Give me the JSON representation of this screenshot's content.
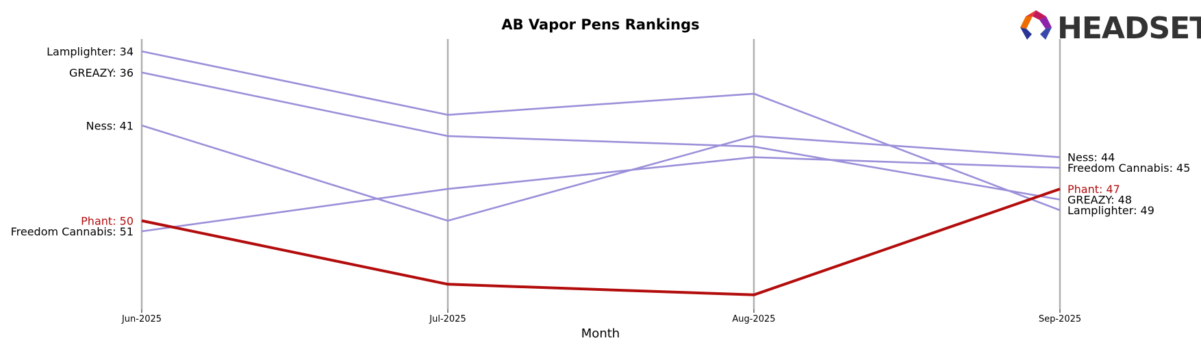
{
  "chart_data": {
    "type": "line",
    "title": "AB Vapor Pens Rankings",
    "xlabel": "Month",
    "ylabel": "",
    "categories": [
      "Jun-2025",
      "Jul-2025",
      "Aug-2025",
      "Sep-2025"
    ],
    "y_inverted": true,
    "ylim": [
      57,
      33
    ],
    "grid": "vertical-at-months",
    "legend": "none",
    "series": [
      {
        "name": "Lamplighter",
        "values": [
          34,
          40,
          38,
          49
        ],
        "color": "#9b8fd9",
        "highlight": false
      },
      {
        "name": "GREAZY",
        "values": [
          36,
          42,
          43,
          48
        ],
        "color": "#9b8fd9",
        "highlight": false
      },
      {
        "name": "Ness",
        "values": [
          41,
          50,
          42,
          44
        ],
        "color": "#9b8fd9",
        "highlight": false
      },
      {
        "name": "Freedom Cannabis",
        "values": [
          51,
          47,
          44,
          45
        ],
        "color": "#9b8fd9",
        "highlight": false
      },
      {
        "name": "Phant",
        "values": [
          50,
          56,
          57,
          47
        ],
        "color": "#b30c0c",
        "highlight": true
      }
    ]
  },
  "logo": {
    "text": "HEADSET"
  }
}
